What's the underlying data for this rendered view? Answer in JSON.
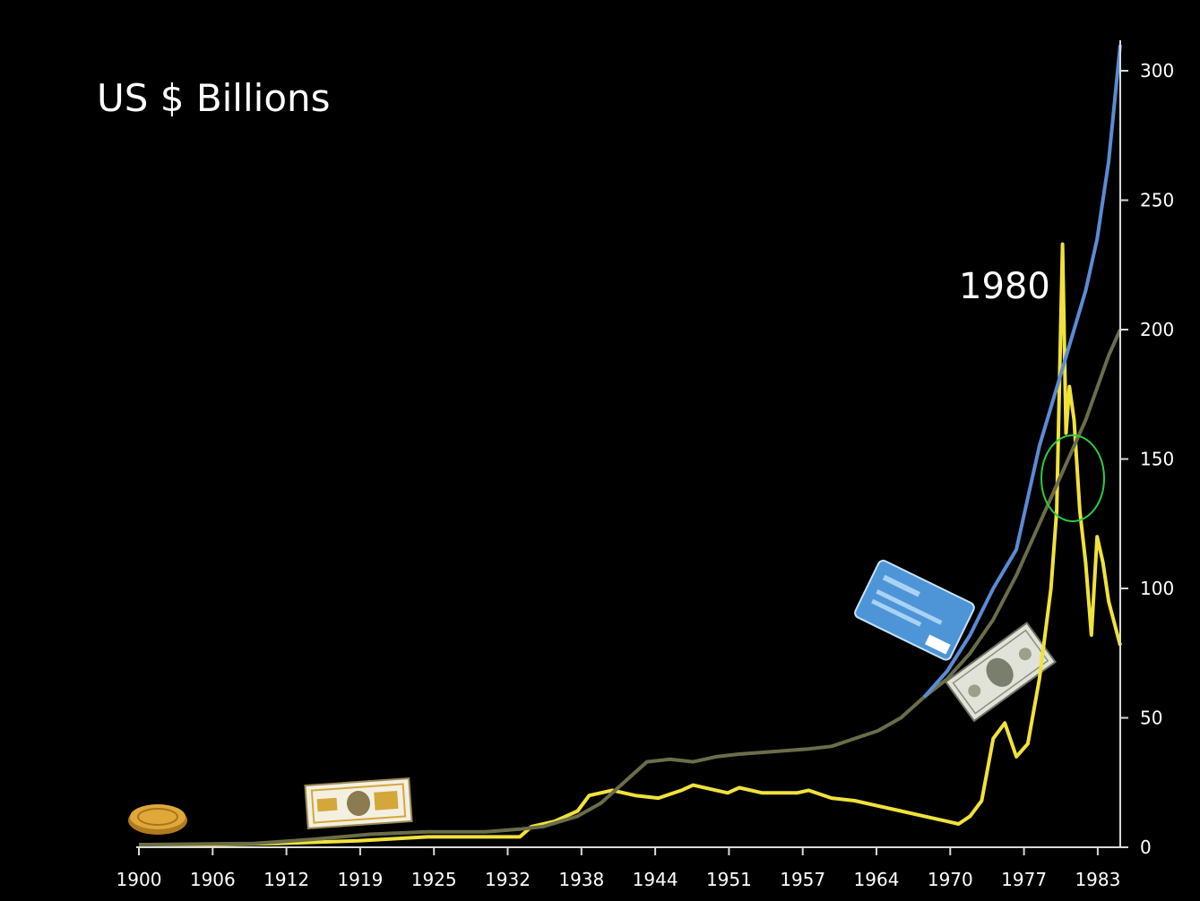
{
  "chart_data": {
    "type": "line",
    "title": "US $ Billions",
    "annotation": "1980",
    "x_tick_labels": [
      "1900",
      "1906",
      "1912",
      "1919",
      "1925",
      "1932",
      "1938",
      "1944",
      "1951",
      "1957",
      "1964",
      "1970",
      "1977",
      "1983"
    ],
    "y_ticks": [
      0,
      50,
      100,
      150,
      200,
      250,
      300
    ],
    "xlim": [
      1900,
      1985
    ],
    "ylim": [
      0,
      300
    ],
    "y_axis_position": "right",
    "grid": false,
    "legend": "none",
    "colors": {
      "background": "#000000",
      "axis": "#d9d9d9",
      "text": "#ffffff",
      "highlight_circle": "#2ecc40"
    },
    "series": [
      {
        "color": "#f0e23a",
        "points": [
          [
            1900,
            1
          ],
          [
            1906,
            1
          ],
          [
            1912,
            1.5
          ],
          [
            1919,
            2.5
          ],
          [
            1925,
            4
          ],
          [
            1933,
            4
          ],
          [
            1934,
            8
          ],
          [
            1936,
            10
          ],
          [
            1938,
            14
          ],
          [
            1939,
            20
          ],
          [
            1941,
            22
          ],
          [
            1943,
            20
          ],
          [
            1945,
            19
          ],
          [
            1947,
            22
          ],
          [
            1948,
            24
          ],
          [
            1950,
            22
          ],
          [
            1951,
            21
          ],
          [
            1952,
            23
          ],
          [
            1954,
            21
          ],
          [
            1957,
            21
          ],
          [
            1958,
            22
          ],
          [
            1960,
            19
          ],
          [
            1962,
            18
          ],
          [
            1964,
            16
          ],
          [
            1966,
            14
          ],
          [
            1968,
            12
          ],
          [
            1969,
            11
          ],
          [
            1970,
            10
          ],
          [
            1971,
            9
          ],
          [
            1972,
            12
          ],
          [
            1973,
            18
          ],
          [
            1974,
            42
          ],
          [
            1975,
            48
          ],
          [
            1976,
            35
          ],
          [
            1977,
            40
          ],
          [
            1978,
            65
          ],
          [
            1979,
            100
          ],
          [
            1979.5,
            130
          ],
          [
            1980,
            233
          ],
          [
            1980.3,
            160
          ],
          [
            1980.6,
            178
          ],
          [
            1981,
            165
          ],
          [
            1981.5,
            130
          ],
          [
            1982,
            110
          ],
          [
            1982.5,
            82
          ],
          [
            1983,
            120
          ],
          [
            1983.5,
            110
          ],
          [
            1984,
            95
          ],
          [
            1985,
            78
          ]
        ]
      },
      {
        "color": "#6b6d4a",
        "points": [
          [
            1900,
            1
          ],
          [
            1910,
            1.5
          ],
          [
            1915,
            3
          ],
          [
            1920,
            5
          ],
          [
            1925,
            6
          ],
          [
            1930,
            6
          ],
          [
            1933,
            7
          ],
          [
            1935,
            8
          ],
          [
            1938,
            12
          ],
          [
            1940,
            17
          ],
          [
            1942,
            25
          ],
          [
            1944,
            33
          ],
          [
            1946,
            34
          ],
          [
            1948,
            33
          ],
          [
            1950,
            35
          ],
          [
            1952,
            36
          ],
          [
            1955,
            37
          ],
          [
            1958,
            38
          ],
          [
            1960,
            39
          ],
          [
            1962,
            42
          ],
          [
            1964,
            45
          ],
          [
            1966,
            50
          ],
          [
            1968,
            58
          ],
          [
            1970,
            65
          ],
          [
            1972,
            75
          ],
          [
            1974,
            88
          ],
          [
            1976,
            105
          ],
          [
            1978,
            125
          ],
          [
            1980,
            145
          ],
          [
            1982,
            165
          ],
          [
            1984,
            190
          ],
          [
            1985,
            200
          ]
        ]
      },
      {
        "color": "#5b8bd6",
        "points": [
          [
            1968,
            58
          ],
          [
            1970,
            68
          ],
          [
            1972,
            82
          ],
          [
            1974,
            100
          ],
          [
            1976,
            115
          ],
          [
            1977,
            135
          ],
          [
            1978,
            155
          ],
          [
            1979,
            170
          ],
          [
            1980,
            185
          ],
          [
            1981,
            200
          ],
          [
            1982,
            215
          ],
          [
            1983,
            235
          ],
          [
            1984,
            265
          ],
          [
            1985,
            310
          ]
        ]
      }
    ]
  }
}
